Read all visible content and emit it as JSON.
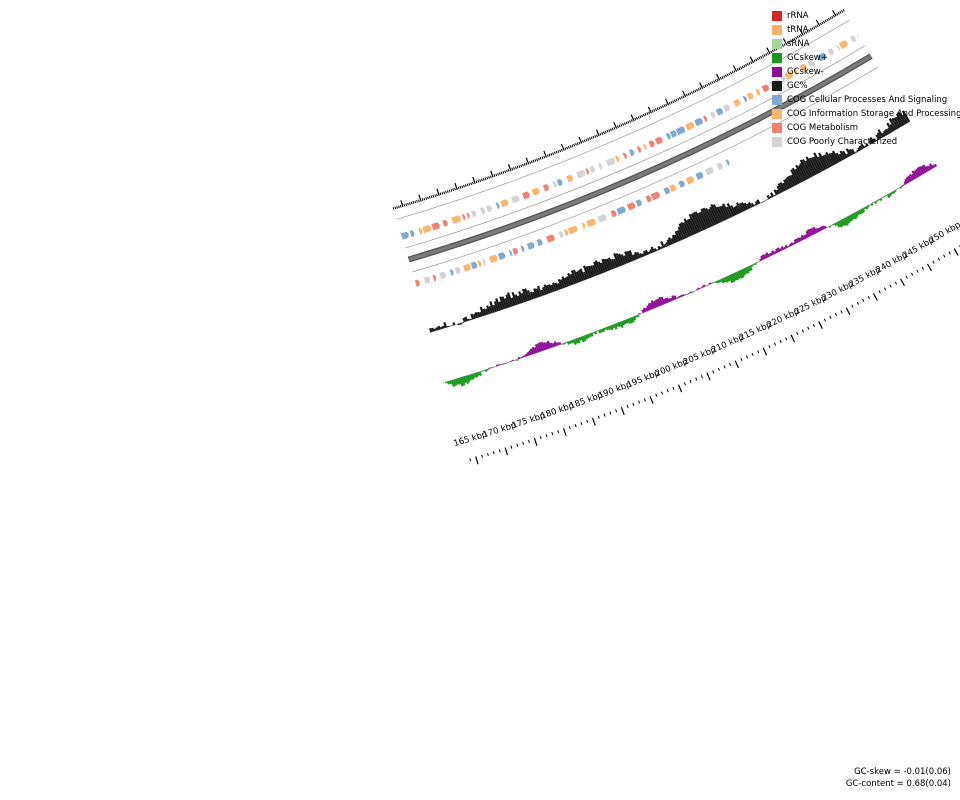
{
  "legend": {
    "items": [
      {
        "label": "rRNA",
        "color": "#d62728"
      },
      {
        "label": "tRNA",
        "color": "#fdae6b"
      },
      {
        "label": "sRNA",
        "color": "#a1d99b"
      },
      {
        "label": "GCskew+",
        "color": "#1a9a1a"
      },
      {
        "label": "GCskew-",
        "color": "#8e0c95"
      },
      {
        "label": "GC%",
        "color": "#1a1a1a"
      },
      {
        "label": "COG Cellular Processes And Signaling",
        "color": "#7eaad0"
      },
      {
        "label": "COG Information Storage And Processing",
        "color": "#fdb56b"
      },
      {
        "label": "COG Metabolism",
        "color": "#f28070"
      },
      {
        "label": "COG Poorly Characterized",
        "color": "#d4d4d4"
      }
    ]
  },
  "stats": {
    "gc_skew": "GC-skew = -0.01(0.06)",
    "gc_content": "GC-content = 0.68(0.04)"
  },
  "ticks": {
    "labels": [
      "165 kbp",
      "170 kbp",
      "175 kbp",
      "180 kbp",
      "185 kbp",
      "190 kbp",
      "195 kbp",
      "200 kbp",
      "205 kbp",
      "210 kbp",
      "215 kbp",
      "220 kbp",
      "225 kbp",
      "230 kbp",
      "235 kbp",
      "240 kbp",
      "245 kbp",
      "250 kbp"
    ]
  },
  "colors": {
    "cog_cellular": "#7eaad0",
    "cog_info": "#fdb56b",
    "cog_metabolism": "#f28070",
    "cog_poor": "#d4d4d4",
    "gc_content": "#1a1a1a",
    "gc_skew_pos": "#1a9a1a",
    "gc_skew_neg": "#8e0c95",
    "backbone": "#7a7a7a",
    "ring_line": "#9a9a9a"
  }
}
